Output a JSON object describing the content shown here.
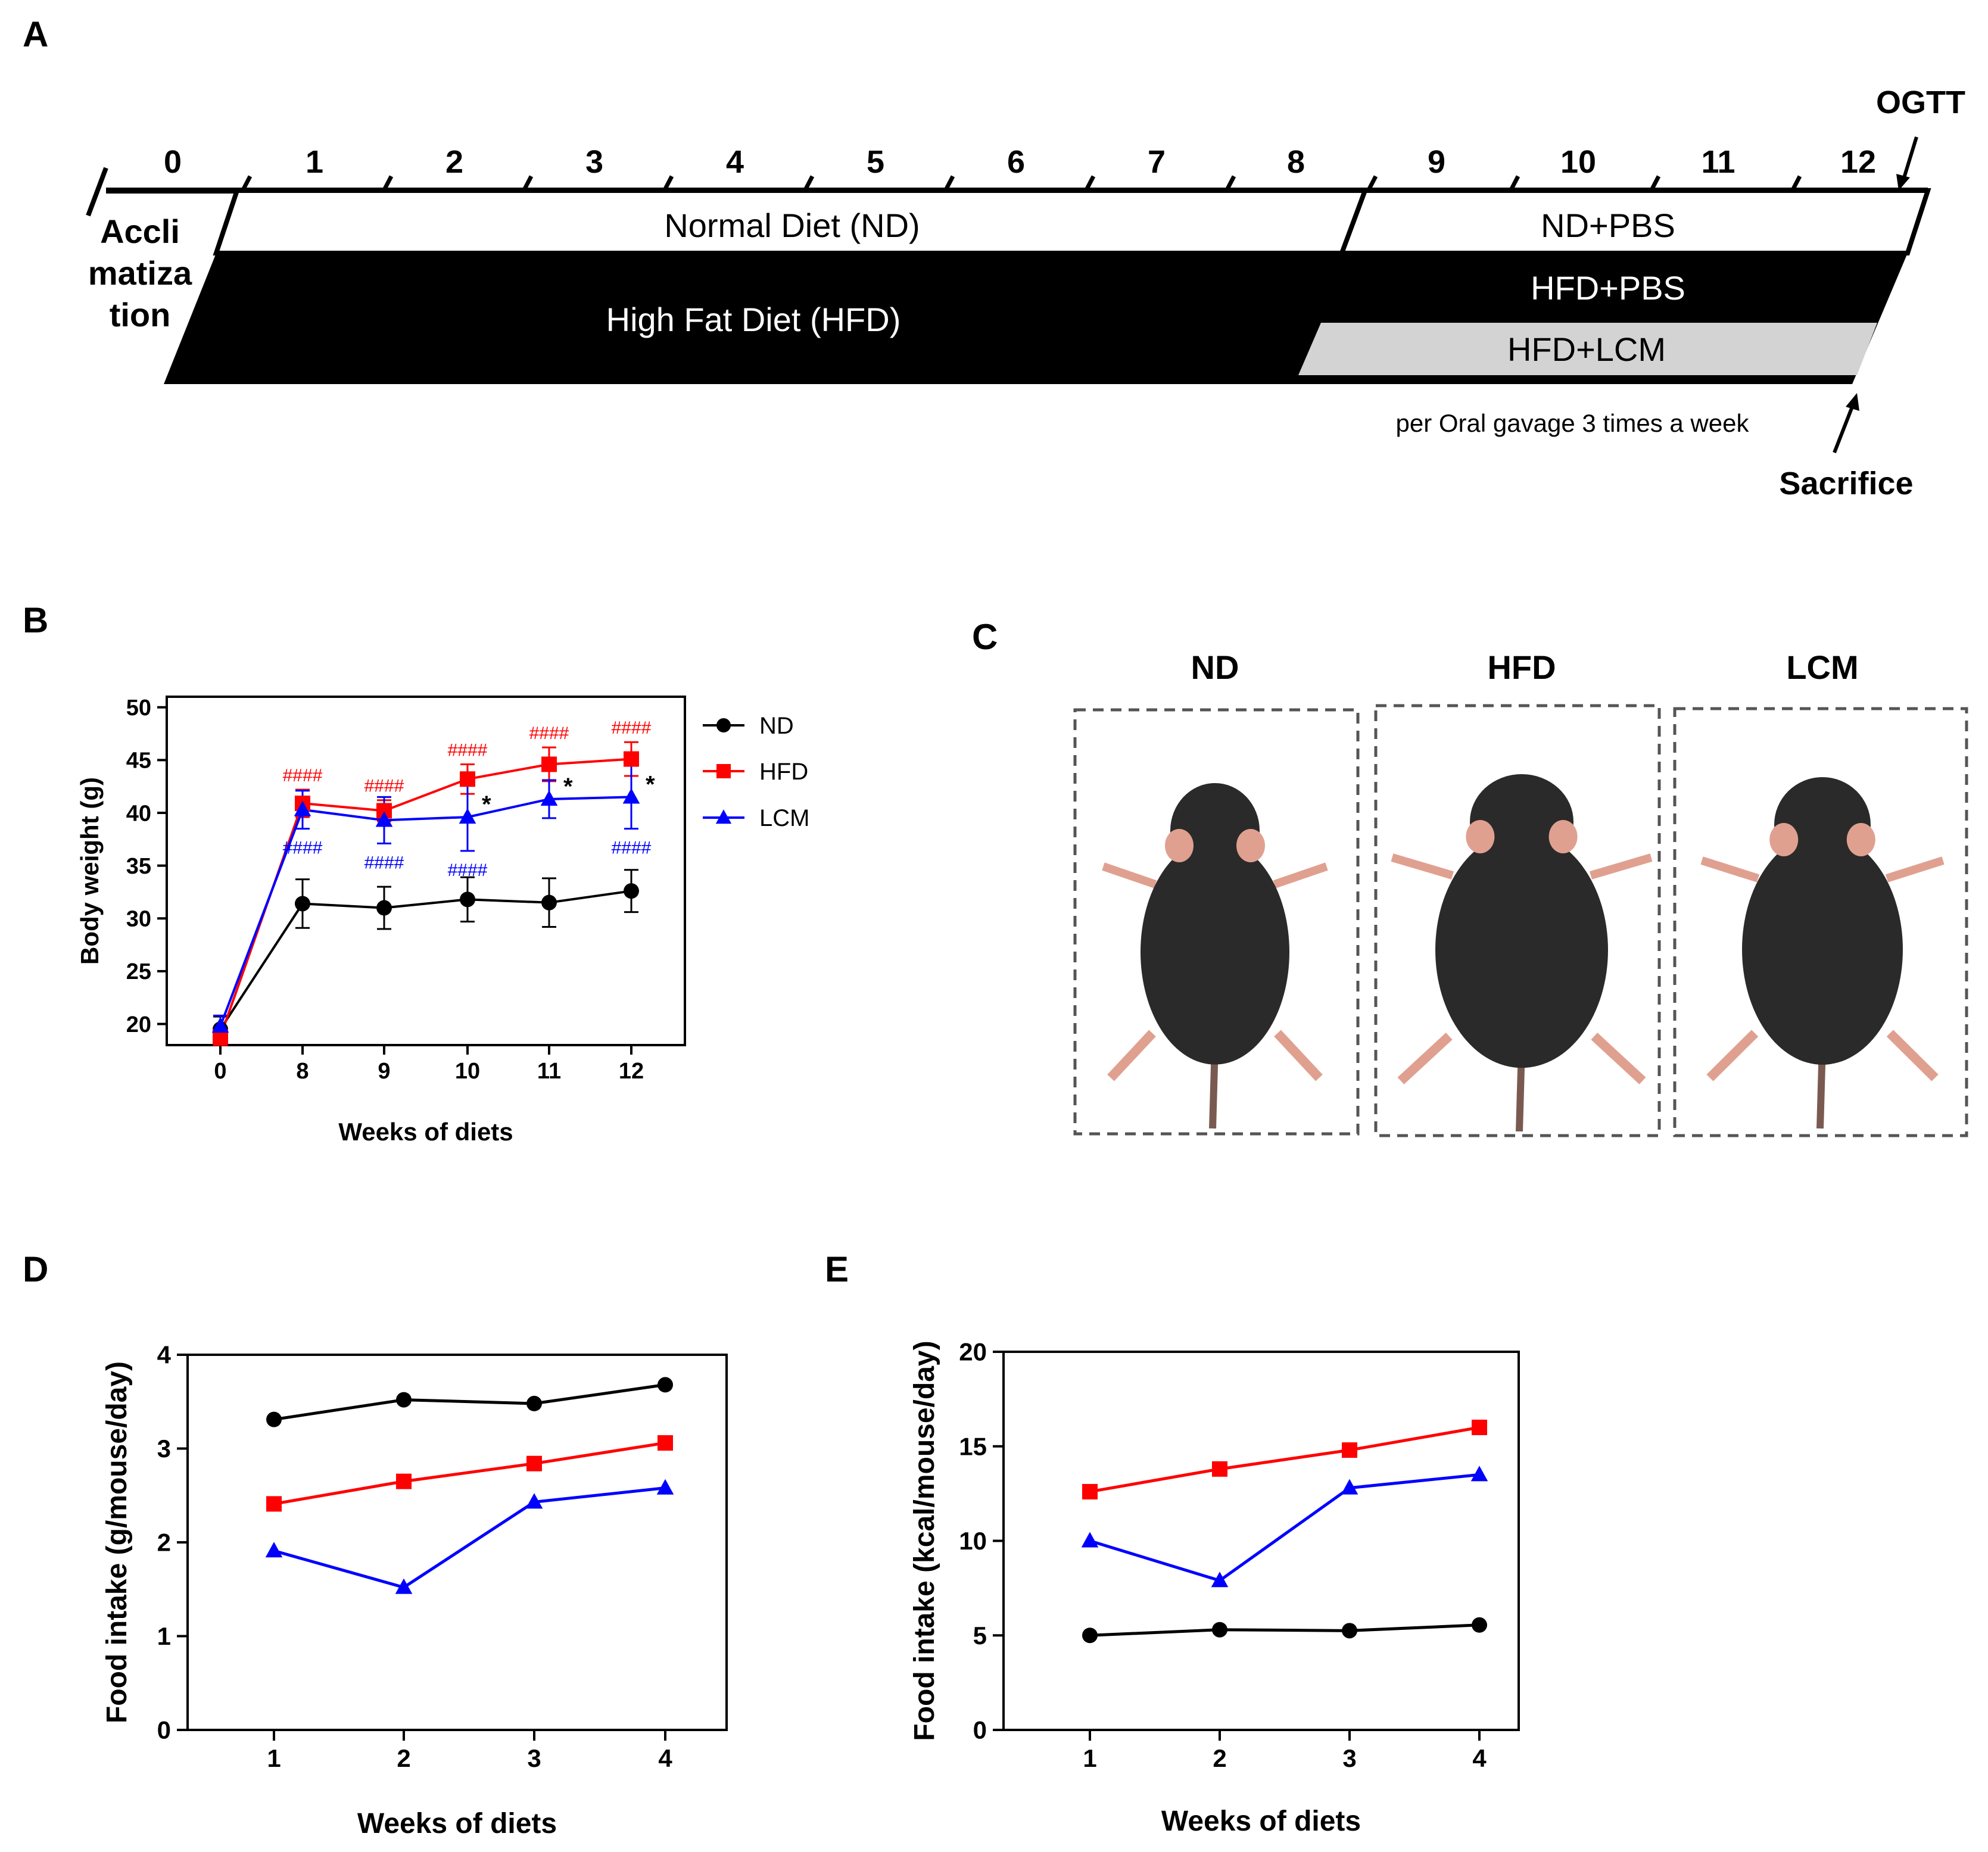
{
  "panel_letters": {
    "a": "A",
    "b": "B",
    "c": "C",
    "d": "D",
    "e": "E"
  },
  "timeline": {
    "week_labels": [
      "0",
      "1",
      "2",
      "3",
      "4",
      "5",
      "6",
      "7",
      "8",
      "9",
      "10",
      "11",
      "12"
    ],
    "acclimatization_lines": [
      "Accli",
      "matiza",
      "tion"
    ],
    "nd_label": "Normal Diet (ND)",
    "hfd_label": "High Fat Diet (HFD)",
    "nd_pbs_label": "ND+PBS",
    "hfd_pbs_label": "HFD+PBS",
    "hfd_lcm_label": "HFD+LCM",
    "gavage_note": "per Oral gavage 3 times a week",
    "ogtt_label": "OGTT",
    "sacrifice_label": "Sacrifice",
    "colors": {
      "black_bar": "#000000",
      "lcm_bar": "#d3d3d3"
    }
  },
  "photos": {
    "labels": [
      "ND",
      "HFD",
      "LCM"
    ],
    "fur_color": "#2a2a2a",
    "skin_color": "#e0a090"
  },
  "chart_data": [
    {
      "id": "B",
      "type": "line",
      "x_categories": [
        "0",
        "8",
        "9",
        "10",
        "11",
        "12"
      ],
      "xlabel": "Weeks of diets",
      "ylabel": "Body weight (g)",
      "ylim": [
        18,
        51
      ],
      "yticks": [
        20,
        25,
        30,
        35,
        40,
        45,
        50
      ],
      "legend_position": "right",
      "series": [
        {
          "name": "ND",
          "color": "#000000",
          "marker": "circle",
          "values": [
            19.5,
            31.4,
            31.0,
            31.8,
            31.5,
            32.6
          ],
          "errors": [
            1.2,
            2.3,
            2.0,
            2.1,
            2.3,
            2.0
          ]
        },
        {
          "name": "HFD",
          "color": "#ff0000",
          "marker": "square",
          "values": [
            18.8,
            40.9,
            40.2,
            43.2,
            44.6,
            45.1
          ],
          "errors": [
            0.8,
            1.3,
            1.0,
            1.4,
            1.6,
            1.6
          ]
        },
        {
          "name": "LCM",
          "color": "#0000ff",
          "marker": "triangle",
          "values": [
            19.8,
            40.3,
            39.3,
            39.6,
            41.3,
            41.5
          ],
          "errors": [
            1.0,
            1.8,
            2.2,
            3.2,
            1.8,
            3.0
          ]
        }
      ],
      "annotations": [
        {
          "text": "####",
          "series": "HFD",
          "x_index": 1,
          "side": "above"
        },
        {
          "text": "####",
          "series": "HFD",
          "x_index": 2,
          "side": "above"
        },
        {
          "text": "####",
          "series": "HFD",
          "x_index": 3,
          "side": "above"
        },
        {
          "text": "####",
          "series": "HFD",
          "x_index": 4,
          "side": "above"
        },
        {
          "text": "####",
          "series": "HFD",
          "x_index": 5,
          "side": "above"
        },
        {
          "text": "####",
          "series": "LCM",
          "x_index": 1,
          "side": "below"
        },
        {
          "text": "####",
          "series": "LCM",
          "x_index": 2,
          "side": "below"
        },
        {
          "text": "####",
          "series": "LCM",
          "x_index": 3,
          "side": "below"
        },
        {
          "text": "####",
          "series": "LCM",
          "x_index": 5,
          "side": "below"
        },
        {
          "text": "*",
          "series": "LCM",
          "x_index": 3,
          "side": "right"
        },
        {
          "text": "*",
          "series": "LCM",
          "x_index": 4,
          "side": "right"
        },
        {
          "text": "*",
          "series": "LCM",
          "x_index": 5,
          "side": "right"
        }
      ]
    },
    {
      "id": "D",
      "type": "line",
      "x_categories": [
        "1",
        "2",
        "3",
        "4"
      ],
      "xlabel": "Weeks of diets",
      "ylabel": "Food intake (g/mouse/day)",
      "ylim": [
        0,
        4
      ],
      "yticks": [
        0,
        1,
        2,
        3,
        4
      ],
      "series": [
        {
          "name": "ND",
          "color": "#000000",
          "marker": "circle",
          "values": [
            3.31,
            3.52,
            3.48,
            3.68
          ]
        },
        {
          "name": "HFD",
          "color": "#ff0000",
          "marker": "square",
          "values": [
            2.41,
            2.65,
            2.84,
            3.06
          ]
        },
        {
          "name": "LCM",
          "color": "#0000ff",
          "marker": "triangle",
          "values": [
            1.91,
            1.52,
            2.43,
            2.58
          ]
        }
      ]
    },
    {
      "id": "E",
      "type": "line",
      "x_categories": [
        "1",
        "2",
        "3",
        "4"
      ],
      "xlabel": "Weeks of diets",
      "ylabel": "Food intake (kcal/mouse/day)",
      "ylim": [
        0,
        20
      ],
      "yticks": [
        0,
        5,
        10,
        15,
        20
      ],
      "series": [
        {
          "name": "ND",
          "color": "#000000",
          "marker": "circle",
          "values": [
            5.0,
            5.3,
            5.25,
            5.55
          ]
        },
        {
          "name": "HFD",
          "color": "#ff0000",
          "marker": "square",
          "values": [
            12.6,
            13.8,
            14.8,
            16.0
          ]
        },
        {
          "name": "LCM",
          "color": "#0000ff",
          "marker": "triangle",
          "values": [
            10.0,
            7.9,
            12.8,
            13.5
          ]
        }
      ]
    }
  ]
}
